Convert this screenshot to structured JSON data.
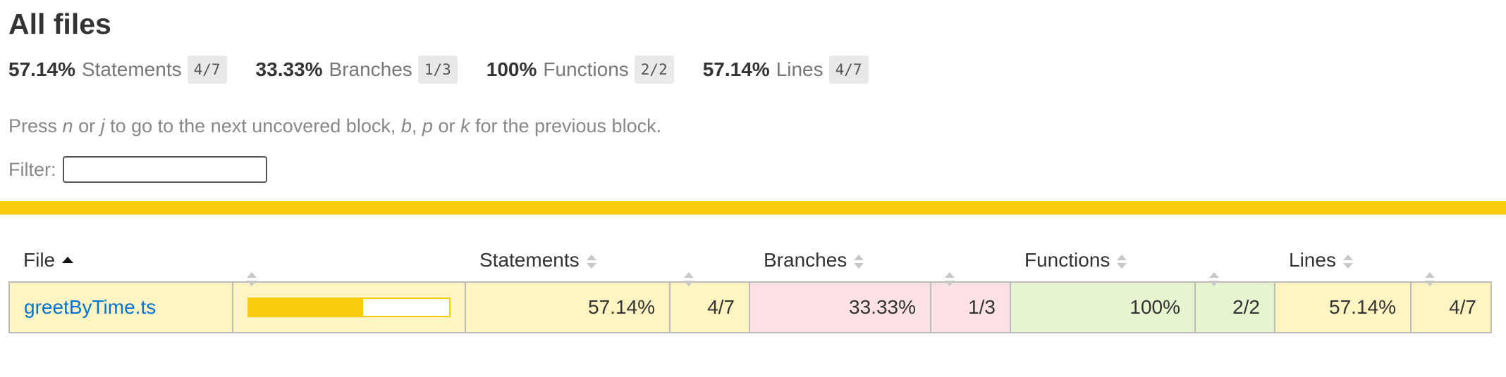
{
  "title": "All files",
  "summary": [
    {
      "pct": "57.14%",
      "label": "Statements",
      "frac": "4/7"
    },
    {
      "pct": "33.33%",
      "label": "Branches",
      "frac": "1/3"
    },
    {
      "pct": "100%",
      "label": "Functions",
      "frac": "2/2"
    },
    {
      "pct": "57.14%",
      "label": "Lines",
      "frac": "4/7"
    }
  ],
  "hint": {
    "t1": "Press ",
    "k1": "n",
    "t2": " or ",
    "k2": "j",
    "t3": " to go to the next uncovered block, ",
    "k3": "b",
    "t4": ", ",
    "k4": "p",
    "t5": " or ",
    "k5": "k",
    "t6": " for the previous block."
  },
  "filter": {
    "label": "Filter:",
    "value": ""
  },
  "columns": {
    "file": "File",
    "statements": "Statements",
    "branches": "Branches",
    "functions": "Functions",
    "lines": "Lines"
  },
  "rows": [
    {
      "file": "greetByTime.ts",
      "coverage_fraction": 0.5714,
      "statements_pct": "57.14%",
      "statements_frac": "4/7",
      "branches_pct": "33.33%",
      "branches_frac": "1/3",
      "functions_pct": "100%",
      "functions_frac": "2/2",
      "lines_pct": "57.14%",
      "lines_frac": "4/7"
    }
  ],
  "colors": {
    "accent_bar": "#f9cd0b",
    "medium": "#fff4c2",
    "low": "#fce1e5",
    "high": "#e6f5d0",
    "link": "#0074d9"
  }
}
